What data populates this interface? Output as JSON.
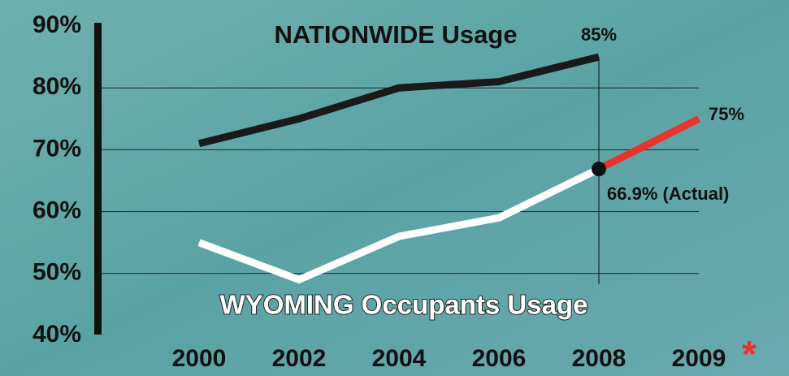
{
  "chart_data": {
    "type": "line",
    "categories": [
      "2000",
      "2002",
      "2004",
      "2006",
      "2008",
      "2009"
    ],
    "series": [
      {
        "name": "NATIONWIDE Usage",
        "color": "#1a1a1a",
        "values": [
          71,
          75,
          80,
          81,
          85,
          null
        ],
        "value_labels": [
          null,
          null,
          null,
          null,
          "85%",
          null
        ]
      },
      {
        "name": "WYOMING Occupants Usage",
        "color": "#ffffff",
        "values": [
          55,
          49,
          56,
          59,
          66.9,
          null
        ],
        "value_labels": [
          null,
          null,
          null,
          null,
          "66.9% (Actual)",
          null
        ]
      },
      {
        "color": "#e8352b",
        "values": [
          null,
          null,
          null,
          null,
          66.9,
          75
        ],
        "value_labels": [
          null,
          null,
          null,
          null,
          null,
          "75%"
        ]
      }
    ],
    "annotations": [
      "*"
    ],
    "ylim": [
      40,
      90
    ],
    "yticks": [
      {
        "value": 40,
        "label": "40%"
      },
      {
        "value": 50,
        "label": "50%"
      },
      {
        "value": 60,
        "label": "60%"
      },
      {
        "value": 70,
        "label": "70%"
      },
      {
        "value": 80,
        "label": "80%"
      },
      {
        "value": 90,
        "label": "90%"
      }
    ],
    "grid": true
  }
}
